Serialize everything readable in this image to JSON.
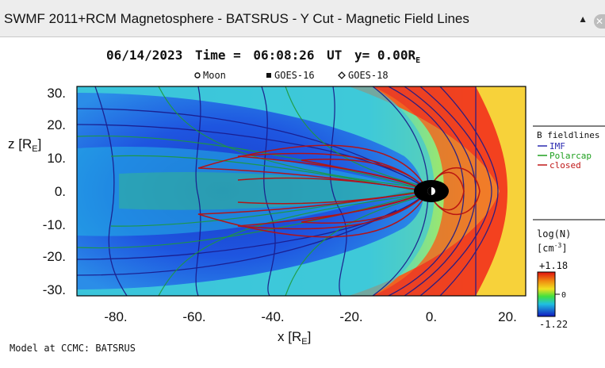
{
  "window": {
    "title": "SWMF 2011+RCM Magnetosphere - BATSRUS - Y Cut - Magnetic Field Lines",
    "collapse_icon": "triangle-up-icon",
    "close_icon": "close-icon"
  },
  "plot": {
    "header": "06/14/2023 Time = 06:08:26 UT y= 0.00RE",
    "header_parts": {
      "date": "06/14/2023",
      "time_label": "Time =",
      "time": "06:08:26",
      "ut": "UT",
      "y_label": "y= 0.00R",
      "y_sub": "E"
    },
    "markers": [
      "Moon",
      "GOES-16",
      "GOES-18"
    ],
    "footer": "Model at CCMC: BATSRUS"
  },
  "axes": {
    "x_label": "x [R",
    "x_sub": "E",
    "x_close": "]",
    "z_label": "z [R",
    "z_sub": "E",
    "z_close": "]",
    "x_ticks": [
      "-80.",
      "-60.",
      "-40.",
      "-20.",
      "0.",
      "20."
    ],
    "z_ticks": [
      "30.",
      "20.",
      "10.",
      "0.",
      "-10.",
      "-20.",
      "-30."
    ],
    "x_range": [
      -90,
      24
    ],
    "z_range": [
      -32,
      32
    ]
  },
  "legend": {
    "title": "B fieldlines",
    "items": [
      {
        "label": "IMF",
        "color": "#2a2ab0"
      },
      {
        "label": "Polarcap",
        "color": "#1fa01f"
      },
      {
        "label": "closed",
        "color": "#c01818"
      }
    ]
  },
  "colorbar": {
    "title": "log(N)",
    "units": "[cm",
    "units_sup": "-3",
    "units_close": "]",
    "max": "+1.18",
    "mid": "0",
    "min": "-1.22"
  }
}
